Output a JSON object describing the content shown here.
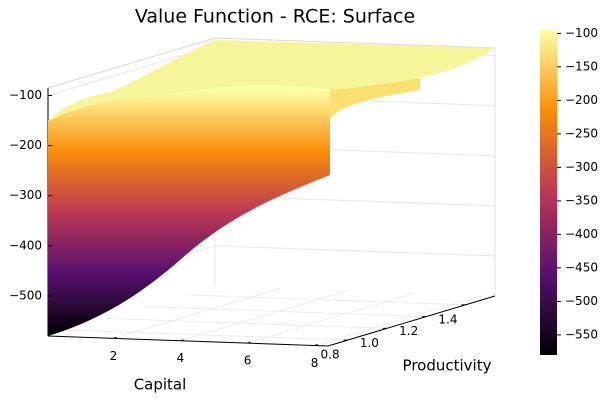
{
  "chart_data": {
    "type": "surface",
    "title": "Value Function - RCE: Surface",
    "xlabel": "Capital",
    "ylabel": "Productivity",
    "zlabel": "",
    "x_ticks": [
      2,
      4,
      6,
      8
    ],
    "y_ticks": [
      0.8,
      1.0,
      1.2,
      1.4
    ],
    "z_ticks": [
      -500,
      -400,
      -300,
      -200,
      -100
    ],
    "xlim": [
      0.05,
      8.4
    ],
    "ylim": [
      0.7,
      1.55
    ],
    "zlim": [
      -580,
      -85
    ],
    "grid": true,
    "colormap": "inferno",
    "colors": {
      "low": "#000004",
      "mid_low": "#57106e",
      "mid": "#bc3754",
      "mid_high": "#f98e09",
      "high": "#fcffa4"
    },
    "colorbar": {
      "ticks": [
        -100,
        -150,
        -200,
        -250,
        -300,
        -350,
        -400,
        -450,
        -500,
        -550
      ],
      "range": [
        -580,
        -95
      ],
      "position": "right"
    },
    "surface_samples": {
      "capital": [
        0.05,
        0.5,
        1.0,
        2.0,
        3.0,
        4.0,
        5.0,
        6.0,
        7.0,
        8.4
      ],
      "front_edge_productivity": 0.7,
      "front_edge_values": [
        -580,
        -545,
        -510,
        -460,
        -425,
        -395,
        -370,
        -345,
        -325,
        -300
      ],
      "back_edge_productivity": 1.55,
      "back_edge_values": [
        -160,
        -140,
        -128,
        -115,
        -108,
        -103,
        -100,
        -97,
        -95,
        -93
      ]
    }
  }
}
